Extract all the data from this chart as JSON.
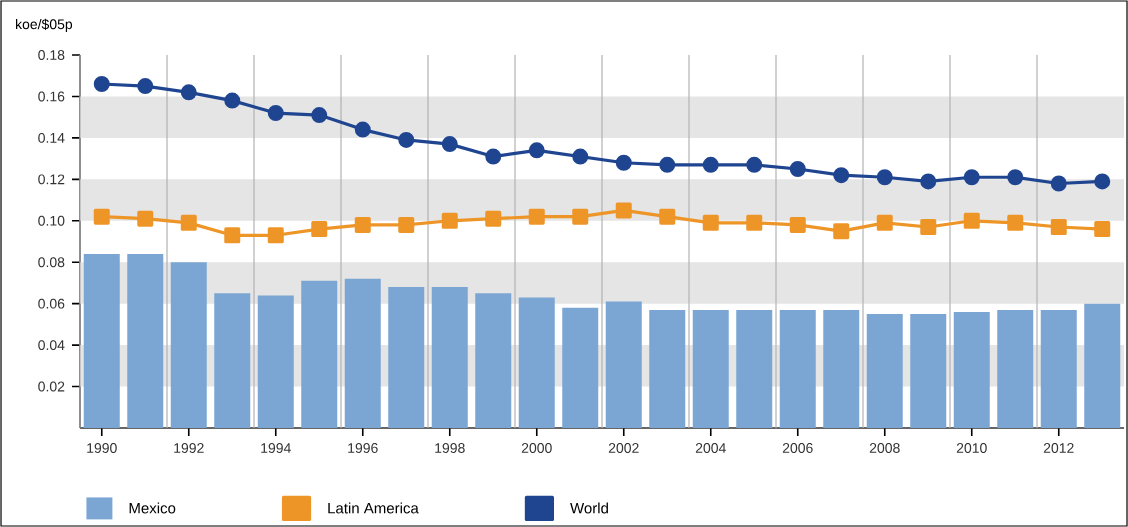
{
  "chart_data": {
    "type": "line",
    "ylabel": "koe/$05p",
    "x": [
      1990,
      1991,
      1992,
      1993,
      1994,
      1995,
      1996,
      1997,
      1998,
      1999,
      2000,
      2001,
      2002,
      2003,
      2004,
      2005,
      2006,
      2007,
      2008,
      2009,
      2010,
      2011,
      2012,
      2013
    ],
    "series": [
      {
        "name": "Mexico",
        "type": "bar",
        "color": "#7ba6d4",
        "values": [
          0.084,
          0.084,
          0.08,
          0.065,
          0.064,
          0.071,
          0.072,
          0.068,
          0.068,
          0.065,
          0.063,
          0.058,
          0.061,
          0.057,
          0.057,
          0.057,
          0.057,
          0.057,
          0.055,
          0.055,
          0.056,
          0.057,
          0.057,
          0.06
        ]
      },
      {
        "name": "Latin America",
        "marker": "square",
        "color": "#ee9527",
        "values": [
          0.102,
          0.101,
          0.099,
          0.093,
          0.093,
          0.096,
          0.098,
          0.098,
          0.1,
          0.101,
          0.102,
          0.102,
          0.105,
          0.102,
          0.099,
          0.099,
          0.098,
          0.095,
          0.099,
          0.097,
          0.1,
          0.099,
          0.097,
          0.096
        ]
      },
      {
        "name": "World",
        "marker": "circle",
        "color": "#1f4591",
        "values": [
          0.166,
          0.165,
          0.162,
          0.158,
          0.152,
          0.151,
          0.144,
          0.139,
          0.137,
          0.131,
          0.134,
          0.131,
          0.128,
          0.127,
          0.127,
          0.127,
          0.125,
          0.122,
          0.121,
          0.119,
          0.121,
          0.121,
          0.118,
          0.119
        ]
      }
    ],
    "xlim": [
      1989.5,
      2013.5
    ],
    "xticks": [
      1990,
      1992,
      1994,
      1996,
      1998,
      2000,
      2002,
      2004,
      2006,
      2008,
      2010,
      2012
    ],
    "ylim": [
      0,
      0.18
    ],
    "yticks": [
      0.02,
      0.04,
      0.06,
      0.08,
      {
        "value": 0.1,
        "label": "0.10"
      },
      0.12,
      0.14,
      0.16,
      0.18
    ],
    "grid": true,
    "legend": "bottom"
  }
}
